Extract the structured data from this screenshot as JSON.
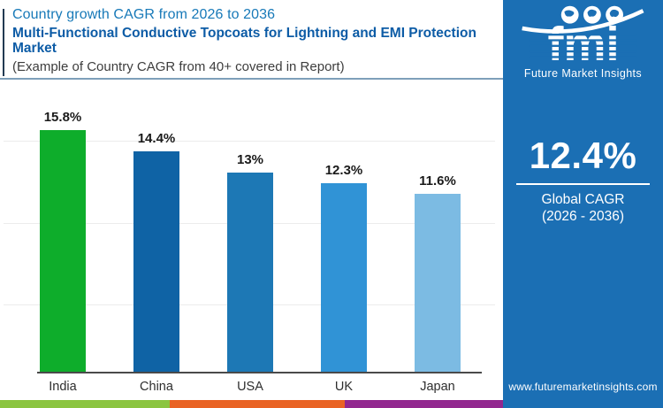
{
  "header": {
    "title_line1": "Country growth CAGR from 2026 to 2036",
    "title_line2": "Multi-Functional Conductive Topcoats for Lightning and EMI Protection Market",
    "subtitle": "(Example of Country CAGR from 40+ covered in Report)"
  },
  "chart_data": {
    "type": "bar",
    "title": "Country growth CAGR from 2026 to 2036",
    "categories": [
      "India",
      "China",
      "USA",
      "UK",
      "Japan"
    ],
    "values": [
      15.8,
      14.4,
      13,
      12.3,
      11.6
    ],
    "labels": [
      "15.8%",
      "14.4%",
      "13%",
      "12.3%",
      "11.6%"
    ],
    "bar_colors": [
      "#0ead2b",
      "#0f63a5",
      "#1d78b5",
      "#3093d6",
      "#7cbbe3"
    ],
    "xlabel": "",
    "ylabel": "",
    "ylim": [
      0,
      16.5
    ],
    "grid": "faint-horizontal-lines",
    "legend": "none",
    "value_label_position": "above-bars"
  },
  "sidebar": {
    "logo_text": "fmi",
    "logo_subtext": "Future Market Insights",
    "global_cagr_value": "12.4%",
    "global_cagr_label_line1": "Global CAGR",
    "global_cagr_label_line2": "(2026 - 2036)",
    "website": "www.futuremarketinsights.com",
    "background_color": "#1b6fb4"
  },
  "footer_strip_colors": [
    "#8bc540",
    "#e96324",
    "#92278f"
  ]
}
